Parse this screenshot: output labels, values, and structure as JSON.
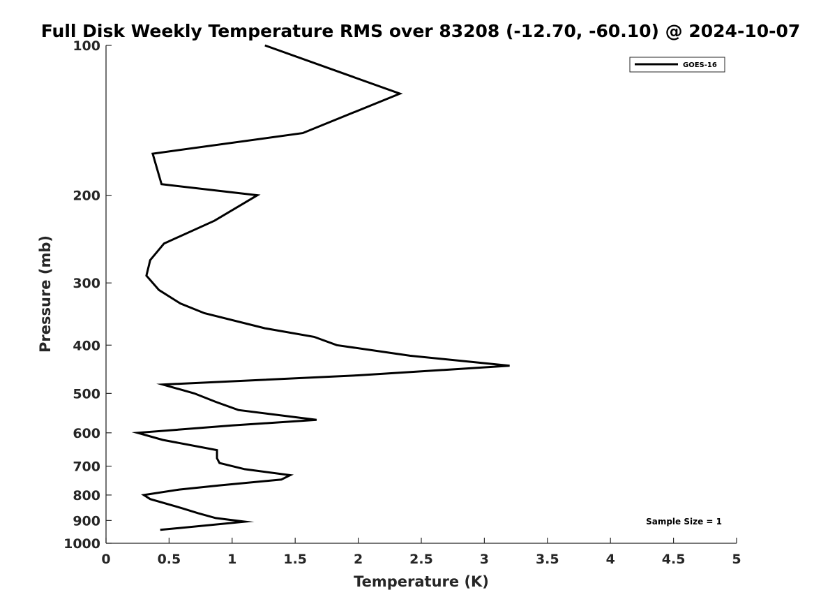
{
  "chart_data": {
    "type": "line",
    "title": "Full Disk Weekly Temperature RMS over 83208 (-12.70, -60.10) @ 2024-10-07",
    "xlabel": "Temperature (K)",
    "ylabel": "Pressure (mb)",
    "xlim": [
      0,
      5
    ],
    "ylim": [
      100,
      1000
    ],
    "y_scale": "log",
    "y_reversed": true,
    "x_ticks": [
      0,
      0.5,
      1,
      1.5,
      2,
      2.5,
      3,
      3.5,
      4,
      4.5,
      5
    ],
    "x_tick_labels": [
      "0",
      "0.5",
      "1",
      "1.5",
      "2",
      "2.5",
      "3",
      "3.5",
      "4",
      "4.5",
      "5"
    ],
    "y_ticks": [
      100,
      200,
      300,
      400,
      500,
      600,
      700,
      800,
      900,
      1000
    ],
    "y_tick_labels": [
      "100",
      "200",
      "300",
      "400",
      "500",
      "600",
      "700",
      "800",
      "900",
      "1000"
    ],
    "grid": false,
    "legend_position": "top-right",
    "series": [
      {
        "name": "GOES-16",
        "color": "#000000",
        "x": [
          1.26,
          2.33,
          1.56,
          0.37,
          0.44,
          1.2,
          0.86,
          0.46,
          0.35,
          0.32,
          0.42,
          0.59,
          0.78,
          1.26,
          1.65,
          1.83,
          2.41,
          3.2,
          2.0,
          0.45,
          0.7,
          0.87,
          1.05,
          1.67,
          1.0,
          0.25,
          0.45,
          0.88,
          0.88,
          0.9,
          1.1,
          1.46,
          1.39,
          0.9,
          0.58,
          0.3,
          0.35,
          0.6,
          0.73,
          0.87,
          1.1,
          0.43
        ],
        "y": [
          100,
          125,
          150,
          165,
          190,
          200,
          225,
          250,
          270,
          290,
          310,
          330,
          345,
          370,
          385,
          400,
          420,
          440,
          460,
          480,
          500,
          520,
          540,
          565,
          580,
          600,
          620,
          650,
          675,
          690,
          710,
          730,
          745,
          765,
          780,
          800,
          815,
          850,
          870,
          890,
          905,
          940
        ]
      }
    ],
    "annotations": [
      "Sample Size = 1"
    ]
  }
}
